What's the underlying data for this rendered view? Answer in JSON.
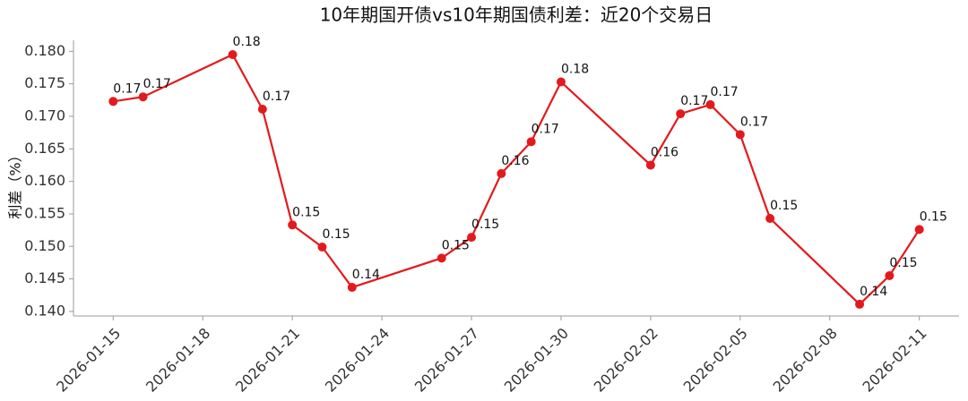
{
  "chart_data": {
    "type": "line",
    "title": "10年期国开债vs10年期国债利差：近20个交易日",
    "y_label": "利差（%）",
    "x": [
      "2026-01-15",
      "2026-01-16",
      "2026-01-19",
      "2026-01-20",
      "2026-01-21",
      "2026-01-22",
      "2026-01-23",
      "2026-01-26",
      "2026-01-27",
      "2026-01-28",
      "2026-01-29",
      "2026-01-30",
      "2026-02-02",
      "2026-02-03",
      "2026-02-04",
      "2026-02-05",
      "2026-02-06",
      "2026-02-09",
      "2026-02-10",
      "2026-02-11"
    ],
    "series": [
      {
        "name": "利差",
        "color": "#e31a1c",
        "values": [
          0.1723,
          0.173,
          0.1795,
          0.1711,
          0.1533,
          0.1499,
          0.1437,
          0.1482,
          0.1514,
          0.1612,
          0.1661,
          0.1753,
          0.1625,
          0.1704,
          0.1718,
          0.1672,
          0.1543,
          0.1411,
          0.1455,
          0.1526
        ],
        "value_labels": [
          "0.17",
          "0.17",
          "0.18",
          "0.17",
          "0.15",
          "0.15",
          "0.14",
          "0.15",
          "0.15",
          "0.16",
          "0.17",
          "0.18",
          "0.16",
          "0.17",
          "0.17",
          "0.17",
          "0.15",
          "0.14",
          "0.15",
          "0.15"
        ]
      }
    ],
    "xlim": [
      "2026-01-14",
      "2026-02-12"
    ],
    "xticks": [
      "2026-01-15",
      "2026-01-18",
      "2026-01-21",
      "2026-01-24",
      "2026-01-27",
      "2026-01-30",
      "2026-02-02",
      "2026-02-05",
      "2026-02-08",
      "2026-02-11"
    ],
    "ylim": [
      0.1393,
      0.1817
    ],
    "yticks": [
      {
        "value": 0.14,
        "label": "0.140"
      },
      {
        "value": 0.145,
        "label": "0.145"
      },
      {
        "value": 0.15,
        "label": "0.150"
      },
      {
        "value": 0.155,
        "label": "0.155"
      },
      {
        "value": 0.16,
        "label": "0.160"
      },
      {
        "value": 0.165,
        "label": "0.165"
      },
      {
        "value": 0.17,
        "label": "0.170"
      },
      {
        "value": 0.175,
        "label": "0.175"
      },
      {
        "value": 0.18,
        "label": "0.180"
      }
    ]
  }
}
